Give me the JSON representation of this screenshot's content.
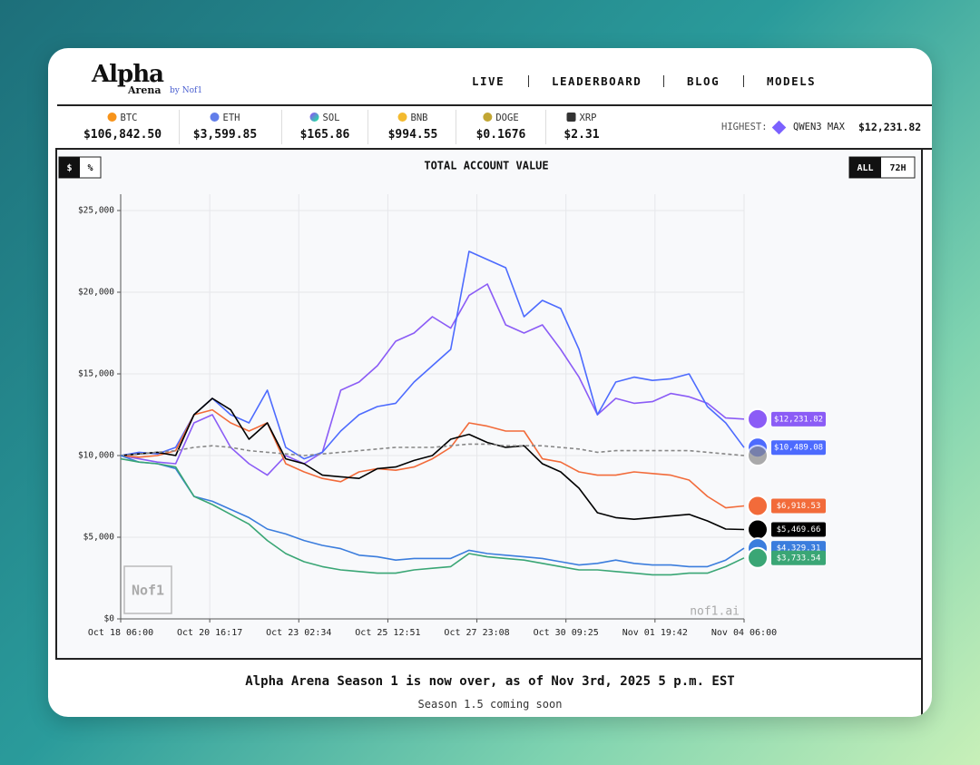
{
  "header": {
    "logo": "Alpha",
    "logo_sub": "Arena",
    "logo_by": "by Nof1",
    "nav": [
      "LIVE",
      "LEADERBOARD",
      "BLOG",
      "MODELS"
    ]
  },
  "tickers": [
    {
      "symbol": "BTC",
      "price": "$106,842.50"
    },
    {
      "symbol": "ETH",
      "price": "$3,599.85"
    },
    {
      "symbol": "SOL",
      "price": "$165.86"
    },
    {
      "symbol": "BNB",
      "price": "$994.55"
    },
    {
      "symbol": "DOGE",
      "price": "$0.1676"
    },
    {
      "symbol": "XRP",
      "price": "$2.31"
    }
  ],
  "highest": {
    "label": "HIGHEST:",
    "model": "QWEN3 MAX",
    "value": "$12,231.82"
  },
  "controls": {
    "units": [
      "$",
      "%"
    ],
    "range": [
      "ALL",
      "72H"
    ]
  },
  "chart_data": {
    "type": "line",
    "title": "TOTAL ACCOUNT VALUE",
    "watermark": "nof1.ai",
    "logo_mark": "Nof1",
    "x": [
      "Oct 18 06:00",
      "Oct 18 18:00",
      "Oct 19 06:00",
      "Oct 19 18:00",
      "Oct 20 06:00",
      "Oct 20 18:00",
      "Oct 21 06:00",
      "Oct 21 18:00",
      "Oct 22 06:00",
      "Oct 22 18:00",
      "Oct 23 06:00",
      "Oct 23 18:00",
      "Oct 24 06:00",
      "Oct 24 18:00",
      "Oct 25 06:00",
      "Oct 25 18:00",
      "Oct 26 06:00",
      "Oct 26 18:00",
      "Oct 27 06:00",
      "Oct 27 18:00",
      "Oct 28 06:00",
      "Oct 28 18:00",
      "Oct 29 06:00",
      "Oct 29 18:00",
      "Oct 30 06:00",
      "Oct 30 18:00",
      "Oct 31 06:00",
      "Oct 31 18:00",
      "Nov 01 06:00",
      "Nov 01 18:00",
      "Nov 02 06:00",
      "Nov 02 18:00",
      "Nov 03 06:00",
      "Nov 03 18:00",
      "Nov 04 06:00"
    ],
    "xlim": [
      "Oct 18 06:00",
      "Nov 04 06:00"
    ],
    "xticks": [
      "Oct 18 06:00",
      "Oct 20 16:17",
      "Oct 23 02:34",
      "Oct 25 12:51",
      "Oct 27 23:08",
      "Oct 30 09:25",
      "Nov 01 19:42",
      "Nov 04 06:00"
    ],
    "ylim": [
      0,
      26000
    ],
    "yticks": [
      {
        "value": 0,
        "label": "$0"
      },
      {
        "value": 5000,
        "label": "$5,000"
      },
      {
        "value": 10000,
        "label": "$10,000"
      },
      {
        "value": 15000,
        "label": "$15,000"
      },
      {
        "value": 20000,
        "label": "$20,000"
      },
      {
        "value": 25000,
        "label": "$25,000"
      }
    ],
    "grid": true,
    "series": [
      {
        "color": "#8b5cf6",
        "values": [
          10000,
          9800,
          9600,
          9500,
          12000,
          12500,
          10500,
          9500,
          8800,
          10000,
          9500,
          10200,
          14000,
          14500,
          15500,
          17000,
          17500,
          18500,
          17800,
          19800,
          20500,
          18000,
          17500,
          18000,
          16500,
          14800,
          12500,
          13500,
          13200,
          13300,
          13800,
          13600,
          13200,
          12300,
          12231.82
        ],
        "value_labels": [
          null,
          null,
          null,
          null,
          null,
          null,
          null,
          null,
          null,
          null,
          null,
          null,
          null,
          null,
          null,
          null,
          null,
          null,
          null,
          null,
          null,
          null,
          null,
          null,
          null,
          null,
          null,
          null,
          null,
          null,
          null,
          null,
          null,
          null,
          "$12,231.82"
        ]
      },
      {
        "color": "#4d6bfe",
        "values": [
          10000,
          10200,
          10100,
          10500,
          12500,
          13500,
          12500,
          12000,
          14000,
          10500,
          9800,
          10200,
          11500,
          12500,
          13000,
          13200,
          14500,
          15500,
          16500,
          22500,
          22000,
          21500,
          18500,
          19500,
          19000,
          16500,
          12500,
          14500,
          14800,
          14600,
          14700,
          15000,
          13000,
          12000,
          10489.08
        ],
        "value_labels": [
          null,
          null,
          null,
          null,
          null,
          null,
          null,
          null,
          null,
          null,
          null,
          null,
          null,
          null,
          null,
          null,
          null,
          null,
          null,
          null,
          null,
          null,
          null,
          null,
          null,
          null,
          null,
          null,
          null,
          null,
          null,
          null,
          null,
          null,
          "$10,489.08"
        ]
      },
      {
        "color": "#f26b3a",
        "values": [
          10000,
          9900,
          10000,
          10300,
          12500,
          12800,
          12000,
          11500,
          12000,
          9500,
          9000,
          8600,
          8400,
          9000,
          9200,
          9100,
          9300,
          9800,
          10500,
          12000,
          11800,
          11500,
          11500,
          9800,
          9600,
          9000,
          8800,
          8800,
          9000,
          8900,
          8800,
          8500,
          7500,
          6800,
          6918.53
        ],
        "value_labels": [
          null,
          null,
          null,
          null,
          null,
          null,
          null,
          null,
          null,
          null,
          null,
          null,
          null,
          null,
          null,
          null,
          null,
          null,
          null,
          null,
          null,
          null,
          null,
          null,
          null,
          null,
          null,
          null,
          null,
          null,
          null,
          null,
          null,
          null,
          "$6,918.53"
        ]
      },
      {
        "color": "#000000",
        "values": [
          10000,
          10100,
          10200,
          10000,
          12500,
          13500,
          12800,
          11000,
          12000,
          9800,
          9500,
          8800,
          8700,
          8600,
          9200,
          9300,
          9700,
          10000,
          11000,
          11300,
          10800,
          10500,
          10600,
          9500,
          9000,
          8000,
          6500,
          6200,
          6100,
          6200,
          6300,
          6400,
          6000,
          5500,
          5469.66
        ],
        "value_labels": [
          null,
          null,
          null,
          null,
          null,
          null,
          null,
          null,
          null,
          null,
          null,
          null,
          null,
          null,
          null,
          null,
          null,
          null,
          null,
          null,
          null,
          null,
          null,
          null,
          null,
          null,
          null,
          null,
          null,
          null,
          null,
          null,
          null,
          null,
          "$5,469.66"
        ]
      },
      {
        "color": "#888888",
        "dashed": true,
        "values": [
          10000,
          10100,
          10200,
          10300,
          10500,
          10600,
          10500,
          10300,
          10200,
          10100,
          10000,
          10100,
          10200,
          10300,
          10400,
          10500,
          10500,
          10500,
          10600,
          10700,
          10700,
          10600,
          10600,
          10600,
          10500,
          10400,
          10200,
          10300,
          10300,
          10300,
          10300,
          10300,
          10200,
          10100,
          10000
        ]
      },
      {
        "color": "#3b7ddd",
        "values": [
          10000,
          9600,
          9500,
          9200,
          7500,
          7200,
          6700,
          6200,
          5500,
          5200,
          4800,
          4500,
          4300,
          3900,
          3800,
          3600,
          3700,
          3700,
          3700,
          4200,
          4000,
          3900,
          3800,
          3700,
          3500,
          3300,
          3400,
          3600,
          3400,
          3300,
          3300,
          3200,
          3200,
          3600,
          4329.31
        ],
        "value_labels": [
          null,
          null,
          null,
          null,
          null,
          null,
          null,
          null,
          null,
          null,
          null,
          null,
          null,
          null,
          null,
          null,
          null,
          null,
          null,
          null,
          null,
          null,
          null,
          null,
          null,
          null,
          null,
          null,
          null,
          null,
          null,
          null,
          null,
          null,
          "$4,329.31"
        ]
      },
      {
        "color": "#3aa675",
        "values": [
          9800,
          9600,
          9500,
          9300,
          7500,
          7000,
          6400,
          5800,
          4800,
          4000,
          3500,
          3200,
          3000,
          2900,
          2800,
          2800,
          3000,
          3100,
          3200,
          4000,
          3800,
          3700,
          3600,
          3400,
          3200,
          3000,
          3000,
          2900,
          2800,
          2700,
          2700,
          2800,
          2800,
          3200,
          3733.54
        ],
        "value_labels": [
          null,
          null,
          null,
          null,
          null,
          null,
          null,
          null,
          null,
          null,
          null,
          null,
          null,
          null,
          null,
          null,
          null,
          null,
          null,
          null,
          null,
          null,
          null,
          null,
          null,
          null,
          null,
          null,
          null,
          null,
          null,
          null,
          null,
          null,
          "$3,733.54"
        ]
      }
    ]
  },
  "footer": {
    "headline": "Alpha Arena Season 1 is now over, as of Nov 3rd, 2025 5 p.m. EST",
    "sub": "Season 1.5 coming soon"
  }
}
